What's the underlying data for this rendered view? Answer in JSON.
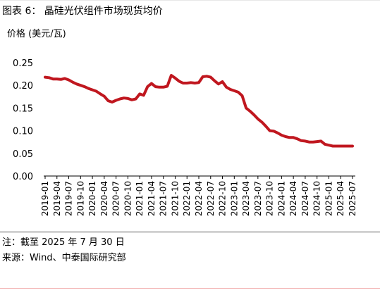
{
  "figure": {
    "title": "图表 6：  晶硅光伏组件市场现货均价",
    "unit_label": "价格 (美元/瓦)",
    "note": "注：截至 2025 年 7 月 30 日",
    "source": "来源：Wind、中泰国际研究部"
  },
  "colors": {
    "line": "#C0171F",
    "axis": "#000000",
    "accent_rule": "#F2B0B0"
  },
  "chart_data": {
    "type": "line",
    "title": "晶硅光伏组件市场现货均价",
    "ylabel": "价格 (美元/瓦)",
    "xlabel": "",
    "ylim": [
      0,
      0.25
    ],
    "yticks": [
      0.0,
      0.05,
      0.1,
      0.15,
      0.2,
      0.25
    ],
    "ytick_labels": [
      "0.00",
      "0.05",
      "0.10",
      "0.15",
      "0.20",
      "0.25"
    ],
    "xlim": [
      "2019-01",
      "2025-07"
    ],
    "xtick_labels": [
      "2019-01",
      "2019-04",
      "2019-07",
      "2019-10",
      "2020-01",
      "2020-04",
      "2020-07",
      "2020-10",
      "2021-01",
      "2021-04",
      "2021-07",
      "2021-10",
      "2022-01",
      "2022-04",
      "2022-07",
      "2022-10",
      "2023-01",
      "2023-04",
      "2023-07",
      "2023-10",
      "2024-01",
      "2024-04",
      "2024-07",
      "2024-10",
      "2025-01",
      "2025-04",
      "2025-07"
    ],
    "grid": false,
    "legend": "none",
    "series": [
      {
        "x": [
          "2019-01",
          "2019-02",
          "2019-03",
          "2019-04",
          "2019-05",
          "2019-06",
          "2019-07",
          "2019-08",
          "2019-09",
          "2019-10",
          "2019-11",
          "2019-12",
          "2020-01",
          "2020-02",
          "2020-03",
          "2020-04",
          "2020-05",
          "2020-06",
          "2020-07",
          "2020-08",
          "2020-09",
          "2020-10",
          "2020-11",
          "2020-12",
          "2021-01",
          "2021-02",
          "2021-03",
          "2021-04",
          "2021-05",
          "2021-06",
          "2021-07",
          "2021-08",
          "2021-09",
          "2021-10",
          "2021-11",
          "2021-12",
          "2022-01",
          "2022-02",
          "2022-03",
          "2022-04",
          "2022-05",
          "2022-06",
          "2022-07",
          "2022-08",
          "2022-09",
          "2022-10",
          "2022-11",
          "2022-12",
          "2023-01",
          "2023-02",
          "2023-03",
          "2023-04",
          "2023-05",
          "2023-06",
          "2023-07",
          "2023-08",
          "2023-09",
          "2023-10",
          "2023-11",
          "2023-12",
          "2024-01",
          "2024-02",
          "2024-03",
          "2024-04",
          "2024-05",
          "2024-06",
          "2024-07",
          "2024-08",
          "2024-09",
          "2024-10",
          "2024-11",
          "2024-12",
          "2025-01",
          "2025-02",
          "2025-03",
          "2025-04",
          "2025-05",
          "2025-06",
          "2025-07"
        ],
        "values": [
          0.218,
          0.217,
          0.214,
          0.214,
          0.213,
          0.215,
          0.212,
          0.207,
          0.203,
          0.2,
          0.197,
          0.193,
          0.19,
          0.187,
          0.181,
          0.176,
          0.166,
          0.163,
          0.167,
          0.17,
          0.172,
          0.171,
          0.168,
          0.17,
          0.181,
          0.178,
          0.197,
          0.204,
          0.197,
          0.196,
          0.196,
          0.198,
          0.222,
          0.216,
          0.209,
          0.205,
          0.205,
          0.206,
          0.205,
          0.206,
          0.219,
          0.22,
          0.218,
          0.21,
          0.203,
          0.208,
          0.196,
          0.191,
          0.188,
          0.185,
          0.177,
          0.15,
          0.143,
          0.135,
          0.126,
          0.119,
          0.11,
          0.1,
          0.099,
          0.095,
          0.09,
          0.087,
          0.085,
          0.085,
          0.082,
          0.078,
          0.077,
          0.075,
          0.075,
          0.076,
          0.077,
          0.07,
          0.068,
          0.066,
          0.066,
          0.066,
          0.066,
          0.066,
          0.066
        ]
      }
    ]
  }
}
